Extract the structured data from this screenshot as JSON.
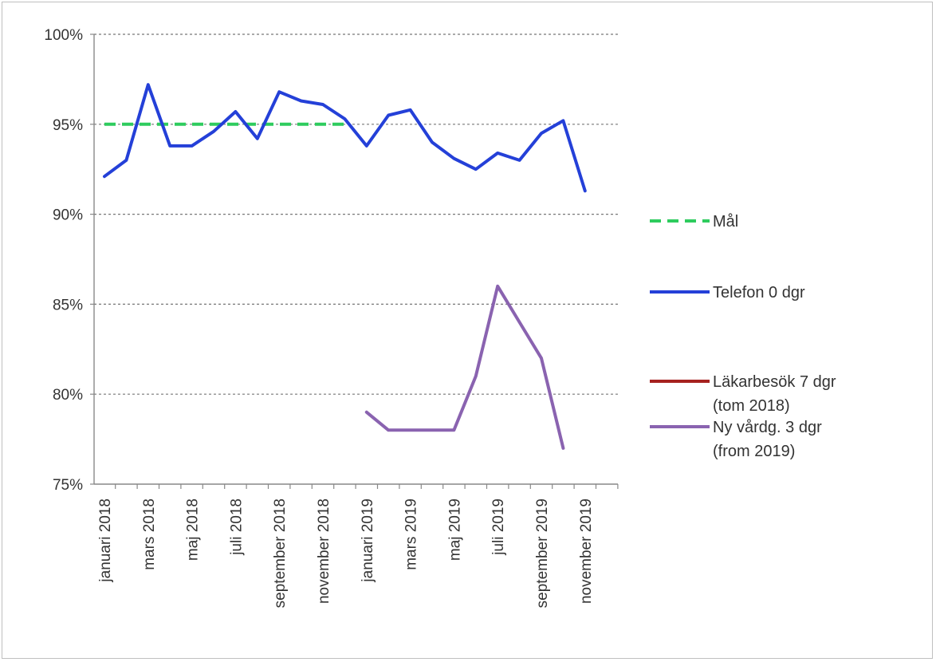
{
  "chart_data": {
    "type": "line",
    "categories": [
      "januari 2018",
      "",
      "mars 2018",
      "",
      "maj 2018",
      "",
      "juli 2018",
      "",
      "september 2018",
      "",
      "november 2018",
      "",
      "januari 2019",
      "",
      "mars 2019",
      "",
      "maj 2019",
      "",
      "juli 2019",
      "",
      "september 2019",
      "",
      "november 2019",
      ""
    ],
    "ylim": [
      75,
      100
    ],
    "yticks": [
      75,
      80,
      85,
      90,
      95,
      100
    ],
    "ytick_labels": [
      "75%",
      "80%",
      "85%",
      "90%",
      "95%",
      "100%"
    ],
    "grid": true,
    "legend_placement": "right",
    "series": [
      {
        "name": "Mål",
        "color": "#2ecc5e",
        "dash": true,
        "values": [
          95,
          95,
          95,
          95,
          95,
          95,
          95,
          95,
          95,
          95,
          95,
          95,
          null,
          null,
          null,
          null,
          null,
          null,
          null,
          null,
          null,
          null,
          null,
          null
        ]
      },
      {
        "name": "Telefon 0 dgr",
        "color": "#2440d8",
        "dash": false,
        "values": [
          92.1,
          93.0,
          97.2,
          93.8,
          93.8,
          94.6,
          95.7,
          94.2,
          96.8,
          96.3,
          96.1,
          95.3,
          93.8,
          95.5,
          95.8,
          94.0,
          93.1,
          92.5,
          93.4,
          93.0,
          94.5,
          95.2,
          91.3,
          null
        ]
      },
      {
        "name": "Läkarbesök 7 dgr (tom 2018)",
        "color": "#a6211f",
        "dash": false,
        "values": [
          null,
          null,
          null,
          null,
          null,
          null,
          null,
          null,
          null,
          null,
          null,
          null,
          null,
          null,
          null,
          null,
          null,
          null,
          null,
          null,
          null,
          null,
          null,
          null
        ]
      },
      {
        "name": "Ny vårdg. 3 dgr (from 2019)",
        "color": "#8a63b0",
        "dash": false,
        "values": [
          null,
          null,
          null,
          null,
          null,
          null,
          null,
          null,
          null,
          null,
          null,
          null,
          79.0,
          78.0,
          78.0,
          78.0,
          78.0,
          81.0,
          86.0,
          84.0,
          82.0,
          77.0,
          null,
          null
        ]
      }
    ]
  }
}
